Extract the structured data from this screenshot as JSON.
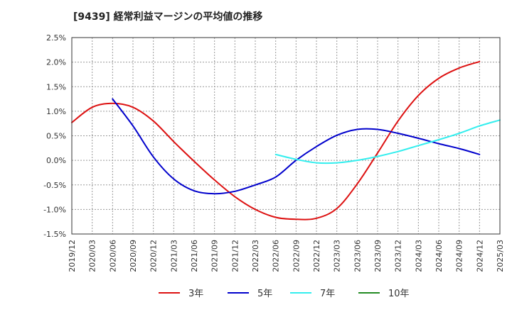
{
  "chart_data": {
    "type": "line",
    "title": "[9439]  経常利益マージンの平均値の推移",
    "xlabel": "",
    "ylabel": "",
    "x_ticks": [
      "2019/12",
      "2020/03",
      "2020/06",
      "2020/09",
      "2020/12",
      "2021/03",
      "2021/06",
      "2021/09",
      "2021/12",
      "2022/03",
      "2022/06",
      "2022/09",
      "2022/12",
      "2023/03",
      "2023/06",
      "2023/09",
      "2023/12",
      "2024/03",
      "2024/06",
      "2024/09",
      "2024/12",
      "2025/03"
    ],
    "y_ticks": [
      "2.5%",
      "2.0%",
      "1.5%",
      "1.0%",
      "0.5%",
      "0.0%",
      "-0.5%",
      "-1.0%",
      "-1.5%"
    ],
    "ylim": [
      -1.5,
      2.5
    ],
    "y_unit": "%",
    "grid": true,
    "legend_position": "bottom",
    "series": [
      {
        "name": "3年",
        "color": "#dd1111",
        "start_index": 0,
        "values": [
          0.77,
          1.08,
          1.16,
          1.08,
          0.8,
          0.38,
          -0.02,
          -0.4,
          -0.74,
          -1.0,
          -1.16,
          -1.2,
          -1.18,
          -0.98,
          -0.48,
          0.15,
          0.8,
          1.32,
          1.67,
          1.88,
          2.01
        ]
      },
      {
        "name": "5年",
        "color": "#0000cc",
        "start_index": 2,
        "values": [
          1.25,
          0.7,
          0.07,
          -0.38,
          -0.62,
          -0.68,
          -0.63,
          -0.5,
          -0.34,
          0.0,
          0.28,
          0.51,
          0.63,
          0.63,
          0.55,
          0.45,
          0.34,
          0.24,
          0.12
        ]
      },
      {
        "name": "7年",
        "color": "#33eeee",
        "start_index": 10,
        "values": [
          0.12,
          0.02,
          -0.05,
          -0.05,
          0.0,
          0.08,
          0.18,
          0.3,
          0.42,
          0.55,
          0.7,
          0.82
        ]
      },
      {
        "name": "10年",
        "color": "#228b22",
        "start_index": 0,
        "values": []
      }
    ]
  }
}
